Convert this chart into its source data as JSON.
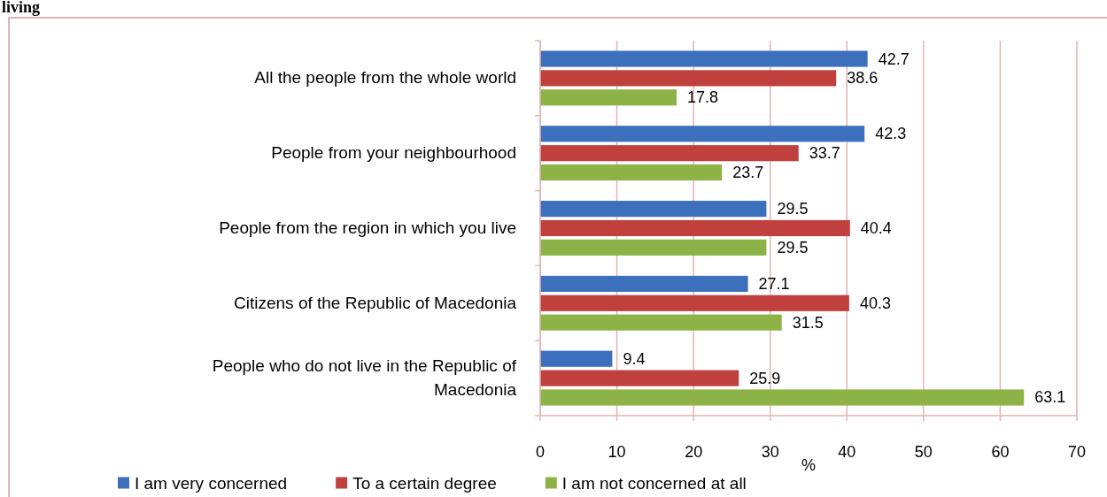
{
  "chart_data": {
    "type": "bar",
    "orientation": "horizontal",
    "title": "living",
    "xlabel": "%",
    "categories": [
      "All the people from the whole world",
      "People from your neighbourhood",
      "People from the region in which you live",
      "Citizens of the Republic of Macedonia",
      "People who do not live in the Republic of Macedonia"
    ],
    "series": [
      {
        "name": "I am very concerned",
        "color": "#3c70bd",
        "values": [
          42.7,
          42.3,
          29.5,
          27.1,
          9.4
        ]
      },
      {
        "name": "To a certain degree",
        "color": "#c0403d",
        "values": [
          38.6,
          33.7,
          40.4,
          40.3,
          25.9
        ]
      },
      {
        "name": "I am not concerned at all",
        "color": "#8db348",
        "values": [
          17.8,
          23.7,
          29.5,
          31.5,
          63.1
        ]
      }
    ],
    "xlim": [
      0,
      70
    ],
    "xticks": [
      0,
      10,
      20,
      30,
      40,
      50,
      60,
      70
    ],
    "grid": "x",
    "data_labels": true,
    "legend": "bottom"
  }
}
